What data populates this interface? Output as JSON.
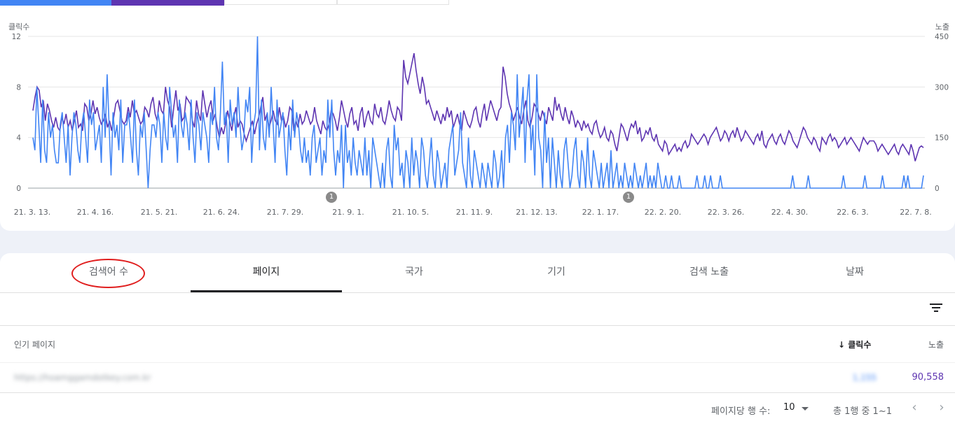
{
  "chart": {
    "left_axis_label": "클릭수",
    "right_axis_label": "노출",
    "left_ticks": [
      "12",
      "8",
      "4",
      "0"
    ],
    "right_ticks": [
      "450",
      "300",
      "150",
      "0"
    ],
    "x_ticks": [
      "21. 3. 13.",
      "21. 4. 16.",
      "21. 5. 21.",
      "21. 6. 24.",
      "21. 7. 29.",
      "21. 9. 1.",
      "21. 10. 5.",
      "21. 11. 9.",
      "21. 12. 13.",
      "22. 1. 17.",
      "22. 2. 20.",
      "22. 3. 26.",
      "22. 4. 30.",
      "22. 6. 3.",
      "22. 7. 8."
    ],
    "annotations": [
      "1",
      "1"
    ],
    "colors": {
      "clicks": "#4285f4",
      "impressions": "#5e35b1",
      "grid": "#e6e6e6"
    }
  },
  "chart_data": {
    "type": "line",
    "x_start": "21. 3. 13.",
    "x_end": "22. 7. 8.",
    "series": [
      {
        "name": "클릭수",
        "axis": "left",
        "ylim": [
          0,
          12
        ],
        "values": [
          4,
          3,
          8,
          5,
          2,
          7,
          3,
          2,
          6,
          4,
          5,
          3,
          2,
          2,
          5,
          6,
          4,
          2,
          5,
          1,
          4,
          6,
          5,
          3,
          2,
          5,
          6,
          4,
          2,
          7,
          5,
          6,
          3,
          4,
          5,
          2,
          8,
          4,
          9,
          5,
          1,
          6,
          4,
          5,
          3,
          7,
          2,
          5,
          5,
          6,
          4,
          2,
          7,
          3,
          1,
          5,
          4,
          6,
          3,
          0,
          3,
          5,
          5,
          4,
          6,
          5,
          2,
          6,
          4,
          3,
          8,
          6,
          4,
          5,
          2,
          7,
          5,
          4,
          6,
          5,
          3,
          7,
          4,
          2,
          6,
          5,
          3,
          6,
          5,
          4,
          2,
          6,
          5,
          8,
          4,
          3,
          6,
          10,
          5,
          6,
          2,
          7,
          5,
          6,
          4,
          8,
          5,
          3,
          4,
          7,
          6,
          8,
          2,
          5,
          6,
          12,
          3,
          7,
          4,
          3,
          6,
          4,
          8,
          5,
          2,
          7,
          4,
          5,
          6,
          3,
          1,
          5,
          3,
          7,
          4,
          6,
          5,
          3,
          2,
          4,
          2,
          3,
          1,
          4,
          5,
          2,
          3,
          4,
          1,
          3,
          2,
          7,
          4,
          7,
          3,
          1,
          3,
          2,
          5,
          0,
          5,
          2,
          3,
          1,
          4,
          2,
          1,
          3,
          2,
          1,
          4,
          1,
          3,
          0,
          4,
          3,
          2,
          1,
          0,
          2,
          0,
          3,
          4,
          1,
          0,
          5,
          3,
          4,
          1,
          2,
          0,
          3,
          2,
          0,
          4,
          1,
          3,
          2,
          0,
          4,
          3,
          1,
          0,
          2,
          4,
          1,
          0,
          3,
          2,
          0,
          1,
          2,
          0,
          3,
          4,
          5,
          1,
          2,
          3,
          6,
          2,
          1,
          0,
          4,
          1,
          0,
          3,
          2,
          1,
          0,
          2,
          1,
          0,
          2,
          1,
          0,
          3,
          2,
          0,
          1,
          3,
          0,
          4,
          5,
          2,
          6,
          5,
          3,
          9,
          4,
          6,
          8,
          2,
          7,
          9,
          3,
          5,
          1,
          9,
          4,
          3,
          0,
          6,
          2,
          4,
          0,
          4,
          2,
          0,
          3,
          1,
          0,
          3,
          4,
          2,
          0,
          1,
          3,
          4,
          1,
          0,
          3,
          2,
          0,
          4,
          1,
          0,
          3,
          2,
          1,
          0,
          2,
          0,
          1,
          2,
          0,
          3,
          0,
          1,
          2,
          0,
          1,
          0,
          2,
          1,
          0,
          1,
          0,
          2,
          1,
          0,
          1,
          0,
          1,
          2,
          0,
          1,
          0,
          1,
          0,
          2,
          1,
          0,
          0,
          1,
          0,
          0,
          1,
          0,
          0,
          0,
          1,
          0,
          0,
          0,
          0,
          0,
          0,
          0,
          0,
          1,
          0,
          0,
          0,
          1,
          0,
          0,
          1,
          0,
          0,
          0,
          0,
          1,
          0,
          0,
          0,
          0,
          0,
          0,
          0,
          0,
          0,
          0,
          0,
          0,
          0,
          0,
          0,
          0,
          0,
          0,
          0,
          0,
          0,
          0,
          0,
          0,
          0,
          0,
          0,
          0,
          0,
          0,
          0,
          0,
          0,
          0,
          0,
          0,
          1,
          0,
          0,
          0,
          0,
          0,
          0,
          0,
          1,
          0,
          0,
          0,
          0,
          0,
          0,
          0,
          0,
          0,
          0,
          0,
          0,
          0,
          0,
          0,
          0,
          0,
          1,
          0,
          0,
          0,
          0,
          0,
          0,
          0,
          0,
          0,
          0,
          1,
          0,
          0,
          0,
          0,
          0,
          0,
          0,
          0,
          1,
          0,
          0,
          0,
          0,
          0,
          0,
          0,
          0,
          0,
          0,
          1,
          0,
          1,
          0,
          0,
          0,
          0,
          0,
          0,
          0,
          1
        ]
      },
      {
        "name": "노출",
        "axis": "right",
        "ylim": [
          0,
          450
        ],
        "values": [
          230,
          270,
          300,
          290,
          240,
          260,
          200,
          250,
          230,
          200,
          180,
          210,
          180,
          170,
          210,
          190,
          220,
          180,
          200,
          170,
          200,
          230,
          180,
          190,
          170,
          250,
          240,
          200,
          220,
          260,
          220,
          240,
          210,
          190,
          200,
          220,
          180,
          200,
          170,
          210,
          250,
          260,
          230,
          200,
          190,
          200,
          240,
          210,
          260,
          220,
          230,
          210,
          190,
          200,
          240,
          230,
          210,
          250,
          270,
          220,
          200,
          260,
          230,
          220,
          300,
          260,
          240,
          180,
          240,
          290,
          230,
          250,
          200,
          210,
          270,
          260,
          250,
          200,
          180,
          260,
          220,
          200,
          290,
          250,
          210,
          240,
          260,
          200,
          220,
          180,
          150,
          180,
          160,
          190,
          230,
          200,
          170,
          210,
          240,
          180,
          200,
          190,
          160,
          140,
          160,
          180,
          200,
          160,
          190,
          210,
          240,
          270,
          200,
          220,
          180,
          200,
          230,
          200,
          190,
          240,
          200,
          210,
          180,
          200,
          240,
          230,
          170,
          200,
          180,
          220,
          190,
          200,
          230,
          210,
          190,
          200,
          240,
          200,
          180,
          160,
          200,
          180,
          170,
          190,
          230,
          220,
          200,
          170,
          210,
          260,
          230,
          200,
          180,
          220,
          240,
          190,
          200,
          170,
          220,
          240,
          180,
          210,
          230,
          200,
          190,
          250,
          220,
          210,
          240,
          200,
          190,
          220,
          260,
          230,
          210,
          200,
          240,
          230,
          200,
          380,
          330,
          310,
          340,
          370,
          400,
          350,
          310,
          280,
          330,
          300,
          250,
          260,
          240,
          220,
          200,
          230,
          210,
          190,
          220,
          200,
          240,
          210,
          230,
          180,
          200,
          220,
          190,
          170,
          230,
          210,
          190,
          180,
          200,
          230,
          240,
          200,
          180,
          220,
          250,
          200,
          230,
          260,
          240,
          220,
          200,
          230,
          240,
          360,
          330,
          280,
          250,
          230,
          200,
          220,
          240,
          210,
          190,
          230,
          260,
          200,
          180,
          210,
          250,
          240,
          220,
          200,
          230,
          210,
          190,
          240,
          220,
          200,
          270,
          230,
          250,
          220,
          200,
          240,
          210,
          190,
          230,
          210,
          180,
          200,
          190,
          170,
          200,
          180,
          190,
          170,
          160,
          190,
          200,
          170,
          150,
          160,
          180,
          150,
          140,
          170,
          160,
          130,
          110,
          150,
          190,
          180,
          160,
          140,
          170,
          190,
          180,
          200,
          160,
          180,
          140,
          150,
          170,
          160,
          180,
          150,
          140,
          160,
          130,
          120,
          110,
          140,
          130,
          100,
          110,
          120,
          130,
          110,
          120,
          110,
          130,
          140,
          120,
          130,
          160,
          150,
          140,
          130,
          140,
          150,
          160,
          150,
          130,
          150,
          160,
          170,
          180,
          160,
          140,
          150,
          170,
          160,
          140,
          160,
          170,
          150,
          180,
          160,
          140,
          150,
          170,
          160,
          150,
          140,
          130,
          150,
          160,
          140,
          170,
          130,
          120,
          140,
          150,
          160,
          140,
          130,
          150,
          160,
          140,
          130,
          150,
          170,
          160,
          140,
          130,
          120,
          140,
          160,
          180,
          170,
          150,
          140,
          130,
          150,
          140,
          120,
          110,
          150,
          140,
          130,
          150,
          160,
          140,
          150,
          140,
          120,
          130,
          140,
          150,
          130,
          140,
          150,
          140,
          130,
          120,
          110,
          130,
          150,
          140,
          130,
          140,
          140,
          140,
          130,
          110,
          120,
          130,
          120,
          110,
          100,
          110,
          120,
          130,
          110,
          100,
          120,
          130,
          120,
          110,
          100,
          130,
          110,
          80,
          100,
          120,
          125,
          120
        ]
      }
    ],
    "ylabel_left": "클릭수",
    "ylabel_right": "노출",
    "grid": true
  },
  "tabs": [
    {
      "label": "검색어 수"
    },
    {
      "label": "페이지"
    },
    {
      "label": "국가"
    },
    {
      "label": "기기"
    },
    {
      "label": "검색 노출"
    },
    {
      "label": "날짜"
    }
  ],
  "table": {
    "col_page": "인기 페이지",
    "col_clicks": "클릭수",
    "col_impressions": "노출",
    "row": {
      "url": "https://hoamggamdotkey.com.kr",
      "clicks": "1,155",
      "impressions": "90,558"
    }
  },
  "pager": {
    "rows_label": "페이지당 행 수:",
    "rows_value": "10",
    "range": "총 1행 중 1~1"
  }
}
